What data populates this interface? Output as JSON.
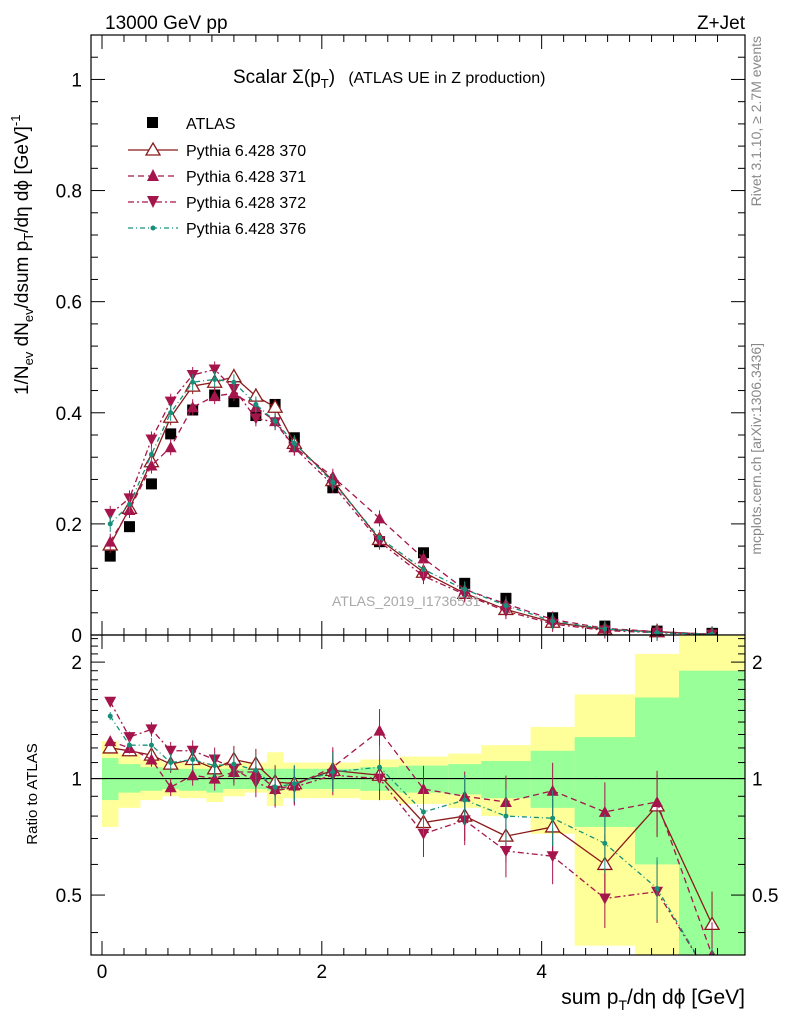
{
  "header": {
    "left": "13000 GeV pp",
    "right": "Z+Jet"
  },
  "side": {
    "rivet": "Rivet 3.1.10, ≥ 2.7M events",
    "mcplots": "mcplots.cern.ch [arXiv:1306.3436]"
  },
  "watermark": "ATLAS_2019_I1736531",
  "chart_data": [
    {
      "type": "scatter",
      "title_main": "Scalar Σ(p",
      "title_sub": "T",
      "title_end": ")",
      "title_note": "(ATLAS UE in Z production)",
      "ylabel": "1/N_ev dN_ev/dsum p_T/dη dϕ [GeV]^-1",
      "ylabel_parts": [
        "1/N",
        "ev",
        " dN",
        "ev",
        "/dsum p",
        "T",
        "/dη dϕ  [GeV]",
        "-1"
      ],
      "xlim": [
        -0.1,
        5.85
      ],
      "ylim": [
        0,
        1.08
      ],
      "yticks": [
        0,
        0.2,
        0.4,
        0.6,
        0.8,
        1
      ],
      "ytick_labels": [
        "0",
        "0.2",
        "0.4",
        "0.6",
        "0.8",
        "1"
      ],
      "x": [
        0.075,
        0.25,
        0.45,
        0.625,
        0.825,
        1.025,
        1.2,
        1.4,
        1.575,
        1.75,
        2.1,
        2.525,
        2.925,
        3.3,
        3.675,
        4.1,
        4.575,
        5.05,
        5.55
      ],
      "series": [
        {
          "name": "ATLAS",
          "color": "#000000",
          "marker": "square",
          "values": [
            0.142,
            0.195,
            0.272,
            0.362,
            0.405,
            0.432,
            0.42,
            0.395,
            0.415,
            0.355,
            0.265,
            0.168,
            0.148,
            0.093,
            0.066,
            0.031,
            0.016,
            0.007,
            0.003
          ]
        },
        {
          "name": "Pythia 6.428 370",
          "color": "#8b1a1a",
          "marker": "open-triangle-up",
          "dash": "",
          "values": [
            0.162,
            0.228,
            0.312,
            0.392,
            0.448,
            0.455,
            0.465,
            0.43,
            0.41,
            0.345,
            0.278,
            0.172,
            0.113,
            0.075,
            0.046,
            0.023,
            0.01,
            0.006,
            0.001
          ]
        },
        {
          "name": "Pythia 6.428 371",
          "color": "#a5154b",
          "marker": "triangle-up",
          "dash": "6,4",
          "values": [
            0.168,
            0.225,
            0.305,
            0.338,
            0.41,
            0.43,
            0.435,
            0.41,
            0.385,
            0.338,
            0.285,
            0.21,
            0.138,
            0.082,
            0.056,
            0.028,
            0.012,
            0.006,
            0.0015
          ]
        },
        {
          "name": "Pythia 6.428 372",
          "color": "#a5154b",
          "marker": "triangle-down",
          "dash": "6,3,2,3",
          "values": [
            0.218,
            0.246,
            0.352,
            0.42,
            0.468,
            0.478,
            0.443,
            0.39,
            0.383,
            0.337,
            0.27,
            0.168,
            0.106,
            0.073,
            0.043,
            0.02,
            0.008,
            0.004,
            0.001
          ]
        },
        {
          "name": "Pythia 6.428 376",
          "color": "#17907a",
          "marker": "dot",
          "dash": "5,3,1,3",
          "values": [
            0.2,
            0.235,
            0.325,
            0.4,
            0.455,
            0.46,
            0.455,
            0.415,
            0.385,
            0.345,
            0.275,
            0.175,
            0.118,
            0.082,
            0.053,
            0.025,
            0.011,
            0.004,
            0.0015
          ]
        }
      ]
    },
    {
      "type": "scatter",
      "ylabel": "Ratio to ATLAS",
      "xlabel": "sum p_T/dη dϕ [GeV]",
      "xlabel_parts": [
        "sum p",
        "T",
        "/dη dϕ [GeV]"
      ],
      "xlim": [
        -0.1,
        5.85
      ],
      "ylim": [
        0.35,
        2.35
      ],
      "yticks": [
        0.5,
        1,
        2
      ],
      "ytick_labels": [
        "0.5",
        "1",
        "2"
      ],
      "xticks": [
        0,
        2,
        4
      ],
      "xtick_labels": [
        "0",
        "2",
        "4"
      ],
      "bin_edges": [
        0,
        0.15,
        0.35,
        0.55,
        0.7,
        0.95,
        1.1,
        1.3,
        1.5,
        1.65,
        1.85,
        2.35,
        2.7,
        3.15,
        3.45,
        3.9,
        4.3,
        4.85,
        5.25,
        5.85
      ],
      "band_green": [
        [
          0.88,
          1.13
        ],
        [
          0.92,
          1.09
        ],
        [
          0.93,
          1.07
        ],
        [
          0.94,
          1.06
        ],
        [
          0.93,
          1.06
        ],
        [
          0.92,
          1.06
        ],
        [
          0.94,
          1.06
        ],
        [
          0.94,
          1.06
        ],
        [
          0.93,
          1.06
        ],
        [
          0.94,
          1.06
        ],
        [
          0.94,
          1.06
        ],
        [
          0.93,
          1.07
        ],
        [
          0.92,
          1.08
        ],
        [
          0.91,
          1.09
        ],
        [
          0.89,
          1.11
        ],
        [
          0.84,
          1.18
        ],
        [
          0.75,
          1.28
        ],
        [
          0.6,
          1.62
        ],
        [
          0.35,
          1.9
        ]
      ],
      "band_yellow": [
        [
          0.75,
          1.25
        ],
        [
          0.84,
          1.16
        ],
        [
          0.88,
          1.12
        ],
        [
          0.9,
          1.1
        ],
        [
          0.89,
          1.1
        ],
        [
          0.87,
          1.09
        ],
        [
          0.9,
          1.1
        ],
        [
          0.92,
          1.1
        ],
        [
          0.85,
          1.17
        ],
        [
          0.89,
          1.1
        ],
        [
          0.89,
          1.1
        ],
        [
          0.88,
          1.12
        ],
        [
          0.86,
          1.14
        ],
        [
          0.84,
          1.16
        ],
        [
          0.8,
          1.22
        ],
        [
          0.72,
          1.36
        ],
        [
          0.37,
          1.65
        ],
        [
          0.35,
          2.1
        ],
        [
          0.35,
          2.35
        ]
      ],
      "series": [
        {
          "name": "Pythia 6.428 370",
          "values": [
            1.2,
            1.18,
            1.15,
            1.09,
            1.12,
            1.06,
            1.12,
            1.09,
            0.98,
            0.97,
            1.05,
            1.02,
            0.77,
            0.8,
            0.71,
            0.75,
            0.6,
            0.85,
            0.42
          ]
        },
        {
          "name": "Pythia 6.428 371",
          "values": [
            1.25,
            1.2,
            1.12,
            0.95,
            1.02,
            1.0,
            1.04,
            1.04,
            0.94,
            0.96,
            1.07,
            1.33,
            0.94,
            0.9,
            0.87,
            0.93,
            0.82,
            0.87,
            0.35
          ]
        },
        {
          "name": "Pythia 6.428 372",
          "values": [
            1.58,
            1.28,
            1.34,
            1.18,
            1.18,
            1.12,
            1.06,
            0.98,
            0.93,
            0.95,
            1.02,
            1.0,
            0.72,
            0.78,
            0.65,
            0.63,
            0.49,
            0.51,
            0.3
          ]
        },
        {
          "name": "Pythia 6.428 376",
          "values": [
            1.45,
            1.22,
            1.22,
            1.1,
            1.12,
            1.08,
            1.09,
            1.05,
            0.95,
            0.97,
            1.04,
            1.07,
            0.82,
            0.88,
            0.8,
            0.79,
            0.68,
            0.52,
            0.3
          ]
        }
      ]
    }
  ]
}
